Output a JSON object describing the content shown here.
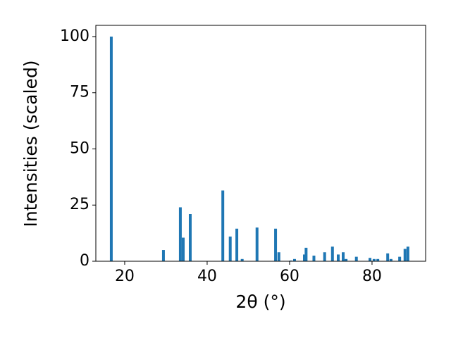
{
  "chart_data": {
    "type": "bar",
    "x_label": "2θ (°)",
    "y_label": "Intensities (scaled)",
    "x": [
      16.75,
      29.4,
      33.5,
      34.2,
      35.9,
      43.8,
      45.6,
      47.2,
      48.5,
      52.1,
      56.6,
      57.4,
      60.3,
      61.2,
      63.6,
      64.0,
      65.9,
      68.5,
      70.4,
      71.8,
      73.0,
      73.7,
      76.2,
      79.5,
      80.5,
      81.4,
      83.8,
      84.6,
      86.7,
      88.0,
      88.7
    ],
    "values": [
      100,
      5,
      24,
      10.5,
      21,
      31.5,
      11,
      14.5,
      1,
      15,
      14.5,
      4,
      0.3,
      1,
      3,
      6,
      2.5,
      4,
      6.5,
      3,
      4,
      1,
      2,
      1.5,
      1,
      1,
      3.5,
      1,
      2,
      5.5,
      6.5
    ],
    "color": "#1f77b4",
    "xlim": [
      13,
      93
    ],
    "ylim": [
      0,
      105
    ],
    "xticks": [
      20,
      40,
      60,
      80
    ],
    "yticks": [
      0,
      25,
      50,
      75,
      100
    ],
    "grid": false
  }
}
